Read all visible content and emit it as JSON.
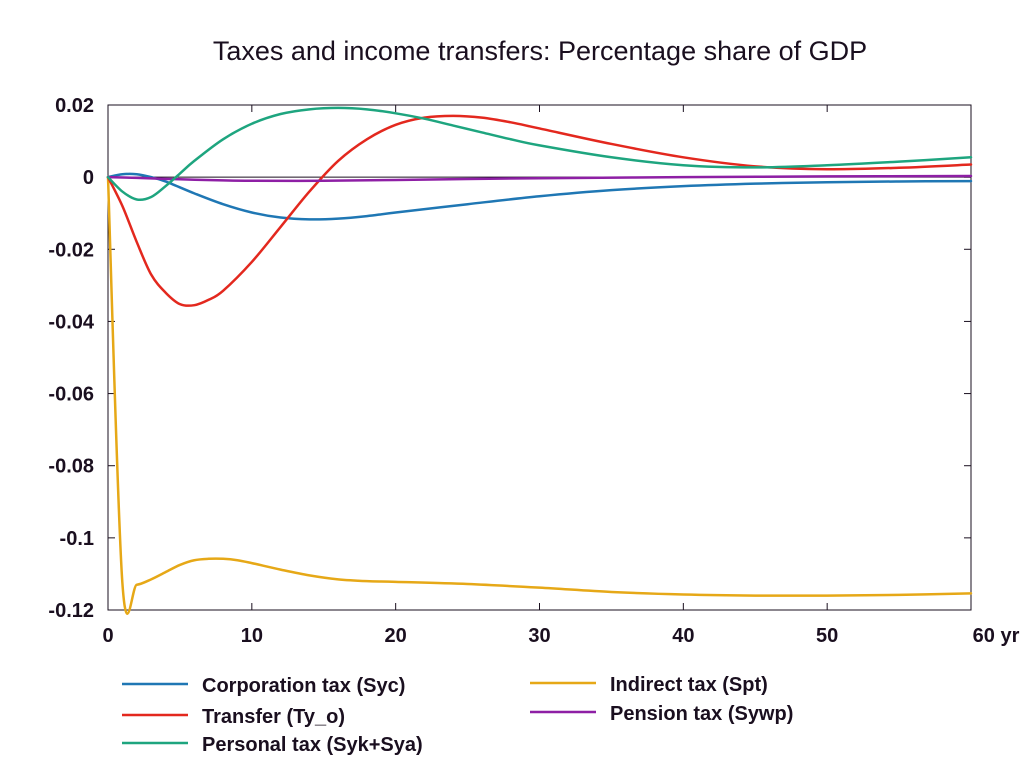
{
  "chart_data": {
    "type": "line",
    "title": "Taxes and income transfers: Percentage share of GDP",
    "xlabel": "",
    "ylabel": "",
    "xlim": [
      0,
      60
    ],
    "ylim": [
      -0.12,
      0.02
    ],
    "grid": false,
    "legend_position": "bottom",
    "x_ticks": [
      0,
      10,
      20,
      30,
      40,
      50,
      60
    ],
    "x_tick_labels": [
      "0",
      "10",
      "20",
      "30",
      "40",
      "50",
      "60 yr"
    ],
    "y_ticks": [
      0.02,
      0,
      -0.02,
      -0.04,
      -0.06,
      -0.08,
      -0.1,
      -0.12
    ],
    "y_tick_labels": [
      "0.02",
      "0",
      "-0.02",
      "-0.04",
      "-0.06",
      "-0.08",
      "-0.1",
      "-0.12"
    ],
    "series": [
      {
        "name": "Corporation tax (Syc)",
        "color": "#1f77b4",
        "x": [
          0,
          1,
          2,
          3,
          4,
          6,
          8,
          10,
          12,
          14,
          16,
          18,
          20,
          25,
          30,
          35,
          40,
          45,
          50,
          55,
          60
        ],
        "y": [
          0,
          0.0008,
          0.0008,
          0,
          -0.0012,
          -0.0045,
          -0.0075,
          -0.0098,
          -0.0112,
          -0.0117,
          -0.0115,
          -0.0108,
          -0.0098,
          -0.0075,
          -0.0053,
          -0.0036,
          -0.0025,
          -0.0018,
          -0.0014,
          -0.0012,
          -0.0011
        ]
      },
      {
        "name": "Indirect tax (Spt)",
        "color": "#e6a817",
        "x": [
          0,
          1,
          2,
          3,
          4,
          5,
          6,
          7,
          8,
          9,
          10,
          12,
          14,
          16,
          18,
          20,
          25,
          30,
          35,
          40,
          45,
          50,
          55,
          60
        ],
        "y": [
          0,
          -0.1125,
          -0.113,
          -0.1115,
          -0.1095,
          -0.1075,
          -0.1062,
          -0.1058,
          -0.1058,
          -0.1062,
          -0.107,
          -0.1088,
          -0.1104,
          -0.1115,
          -0.112,
          -0.1122,
          -0.1128,
          -0.1138,
          -0.115,
          -0.1157,
          -0.116,
          -0.116,
          -0.1158,
          -0.1154
        ]
      },
      {
        "name": "Transfer (Ty_o)",
        "color": "#e3281e",
        "x": [
          0,
          1,
          2,
          3,
          4,
          5,
          6,
          7,
          8,
          10,
          12,
          14,
          16,
          18,
          20,
          22,
          24,
          26,
          28,
          30,
          35,
          40,
          45,
          50,
          55,
          60
        ],
        "y": [
          0,
          -0.008,
          -0.018,
          -0.027,
          -0.032,
          -0.0352,
          -0.0355,
          -0.034,
          -0.0315,
          -0.0235,
          -0.0138,
          -0.004,
          0.0045,
          0.0105,
          0.0145,
          0.0165,
          0.017,
          0.0165,
          0.0152,
          0.0135,
          0.0092,
          0.0055,
          0.003,
          0.0022,
          0.0026,
          0.0035
        ]
      },
      {
        "name": "Pension tax (Sywp)",
        "color": "#8e1fa5",
        "x": [
          0,
          2,
          5,
          8,
          10,
          15,
          20,
          25,
          30,
          40,
          50,
          60
        ],
        "y": [
          0,
          -0.0002,
          -0.0006,
          -0.0009,
          -0.001,
          -0.001,
          -0.0008,
          -0.0005,
          -0.0003,
          0,
          0.0002,
          0.0003
        ]
      },
      {
        "name": "Personal tax (Syk+Sya)",
        "color": "#1ea57f",
        "x": [
          0,
          1,
          2,
          3,
          4,
          5,
          6,
          8,
          10,
          12,
          14,
          16,
          18,
          20,
          22,
          24,
          26,
          28,
          30,
          35,
          40,
          45,
          50,
          55,
          60
        ],
        "y": [
          0,
          -0.004,
          -0.0062,
          -0.0055,
          -0.0025,
          0.001,
          0.0045,
          0.0105,
          0.0148,
          0.0175,
          0.0188,
          0.0192,
          0.0188,
          0.0177,
          0.0162,
          0.0143,
          0.0124,
          0.0105,
          0.0088,
          0.0055,
          0.0033,
          0.0027,
          0.0033,
          0.0043,
          0.0055
        ]
      }
    ]
  }
}
